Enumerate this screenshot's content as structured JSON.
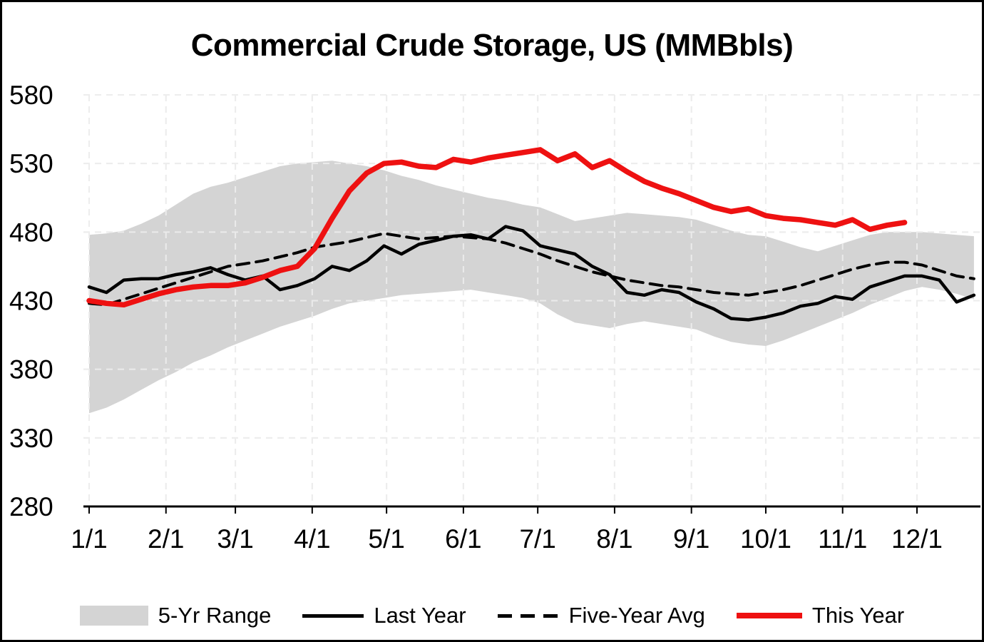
{
  "chart_data": {
    "type": "line",
    "title": "Commercial Crude Storage, US (MMBbls)",
    "xlabel": "",
    "ylabel": "",
    "ylim": [
      280,
      580
    ],
    "y_ticks": [
      280,
      330,
      380,
      430,
      480,
      530,
      580
    ],
    "x_tick_labels": [
      "1/1",
      "2/1",
      "3/1",
      "4/1",
      "5/1",
      "6/1",
      "7/1",
      "8/1",
      "9/1",
      "10/1",
      "11/1",
      "12/1"
    ],
    "x_tick_days": [
      1,
      32,
      60,
      91,
      121,
      152,
      182,
      213,
      244,
      274,
      305,
      335
    ],
    "x_unit": "day-of-year, weekly observations",
    "week_interval_days": 7,
    "grid": "dashed horizontal and vertical",
    "legend_position": "bottom",
    "colors": {
      "grid": "#d9d9d9",
      "axis": "#000000",
      "band": "#d4d4d4",
      "last_year": "#000000",
      "five_year_avg": "#000000",
      "this_year": "#ee1111"
    },
    "series": [
      {
        "name": "5-Yr Range",
        "type": "band",
        "color": "#d4d4d4",
        "low": [
          348,
          352,
          358,
          365,
          372,
          378,
          385,
          390,
          396,
          401,
          406,
          411,
          415,
          419,
          424,
          428,
          430,
          432,
          434,
          435,
          436,
          437,
          438,
          436,
          434,
          432,
          428,
          420,
          414,
          412,
          410,
          413,
          415,
          413,
          411,
          409,
          404,
          400,
          398,
          397,
          401,
          406,
          411,
          416,
          421,
          427,
          432,
          437,
          440,
          438,
          435,
          431
        ],
        "high": [
          478,
          479,
          481,
          486,
          492,
          500,
          508,
          513,
          516,
          520,
          524,
          528,
          530,
          531,
          532,
          530,
          528,
          525,
          521,
          518,
          514,
          511,
          508,
          505,
          503,
          500,
          498,
          493,
          488,
          490,
          492,
          494,
          493,
          492,
          491,
          489,
          485,
          481,
          478,
          477,
          473,
          469,
          466,
          470,
          474,
          478,
          480,
          480,
          480,
          479,
          478,
          477
        ]
      },
      {
        "name": "Last Year",
        "type": "line",
        "color": "#000000",
        "dash": "solid",
        "width": 4.5,
        "values": [
          440,
          436,
          445,
          446,
          446,
          449,
          451,
          454,
          449,
          445,
          448,
          438,
          441,
          446,
          455,
          452,
          459,
          470,
          464,
          471,
          474,
          477,
          478,
          475,
          484,
          481,
          470,
          467,
          464,
          455,
          449,
          436,
          434,
          438,
          436,
          429,
          424,
          417,
          416,
          418,
          421,
          426,
          428,
          433,
          431,
          440,
          444,
          448,
          448,
          445,
          429,
          434
        ]
      },
      {
        "name": "Five-Year Avg",
        "type": "line",
        "color": "#000000",
        "dash": "dashed",
        "width": 4,
        "values": [
          428,
          427,
          431,
          435,
          439,
          443,
          447,
          451,
          455,
          457,
          459,
          462,
          465,
          469,
          471,
          473,
          476,
          479,
          477,
          475,
          476,
          477,
          476,
          475,
          472,
          468,
          464,
          459,
          455,
          451,
          448,
          445,
          443,
          441,
          440,
          438,
          436,
          435,
          434,
          436,
          438,
          441,
          445,
          449,
          453,
          456,
          458,
          458,
          456,
          452,
          448,
          446
        ]
      },
      {
        "name": "This Year",
        "type": "line",
        "color": "#ee1111",
        "dash": "solid",
        "width": 7.5,
        "values": [
          430,
          428,
          427,
          431,
          435,
          438,
          440,
          441,
          441,
          443,
          447,
          452,
          455,
          468,
          490,
          510,
          523,
          530,
          531,
          528,
          527,
          533,
          531,
          534,
          536,
          538,
          540,
          532,
          537,
          527,
          532,
          524,
          517,
          512,
          508,
          503,
          498,
          495,
          497,
          492,
          490,
          489,
          487,
          485,
          489,
          482,
          485,
          487
        ]
      }
    ]
  }
}
